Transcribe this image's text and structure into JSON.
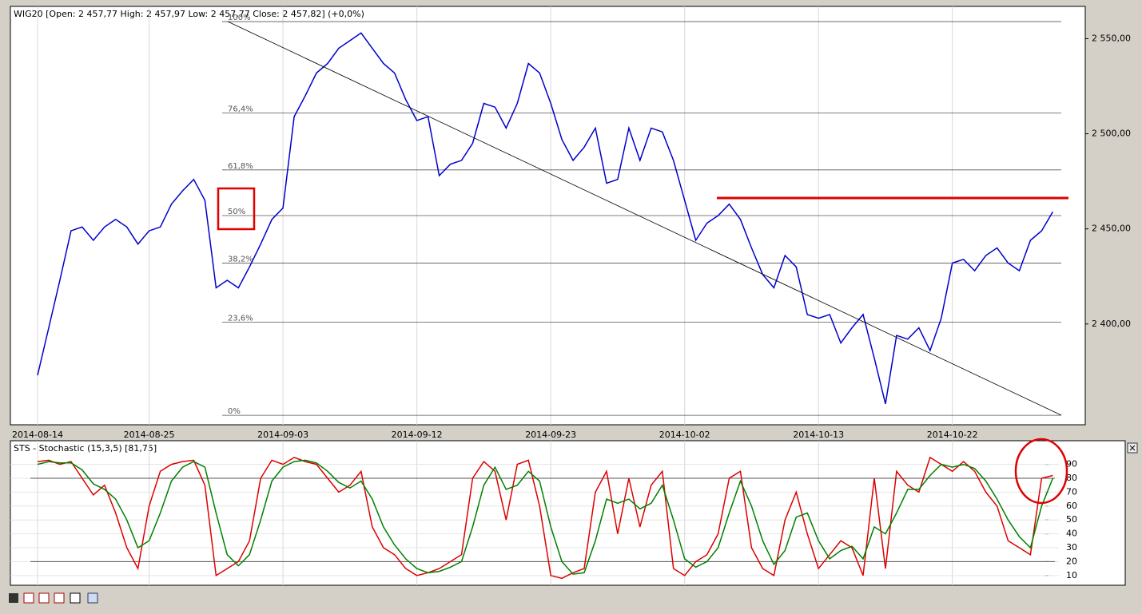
{
  "chart_data": [
    {
      "type": "line",
      "title": "WIG20 [Open: 2 457,77  High: 2 457,97  Low: 2 457,77  Close: 2 457,82] (+0,0%)",
      "color": "#0000cc",
      "categories": [
        "2014-08-14",
        null,
        null,
        null,
        null,
        null,
        null,
        null,
        null,
        null,
        "2014-08-25",
        null,
        null,
        null,
        null,
        null,
        null,
        null,
        null,
        null,
        null,
        null,
        "2014-09-03",
        null,
        null,
        null,
        null,
        null,
        null,
        null,
        null,
        null,
        null,
        null,
        "2014-09-12",
        null,
        null,
        null,
        null,
        null,
        null,
        null,
        null,
        null,
        null,
        null,
        "2014-09-23",
        null,
        null,
        null,
        null,
        null,
        null,
        null,
        null,
        null,
        null,
        null,
        "2014-10-02",
        null,
        null,
        null,
        null,
        null,
        null,
        null,
        null,
        null,
        null,
        null,
        "2014-10-13",
        null,
        null,
        null,
        null,
        null,
        null,
        null,
        null,
        null,
        null,
        null,
        "2014-10-22",
        null,
        null,
        null,
        null,
        null,
        null,
        null,
        null,
        null
      ],
      "values": [
        2373,
        2398,
        2423,
        2449,
        2451,
        2444,
        2451,
        2455,
        2451,
        2442,
        2449,
        2451,
        2463,
        2470,
        2476,
        2465,
        2419,
        2423,
        2419,
        2430,
        2442,
        2455,
        2461,
        2509,
        2520,
        2532,
        2537,
        2545,
        2549,
        2553,
        2545,
        2537,
        2532,
        2518,
        2507,
        2509,
        2478,
        2484,
        2486,
        2495,
        2516,
        2514,
        2503,
        2516,
        2537,
        2532,
        2516,
        2497,
        2486,
        2493,
        2503,
        2474,
        2476,
        2503,
        2486,
        2503,
        2501,
        2486,
        2465,
        2444,
        2453,
        2457,
        2463,
        2455,
        2440,
        2426,
        2419,
        2436,
        2430,
        2405,
        2403,
        2405,
        2390,
        2398,
        2405,
        2382,
        2358,
        2394,
        2392,
        2398,
        2386,
        2403,
        2432,
        2434,
        2428,
        2436,
        2440,
        2432,
        2428,
        2444,
        2449,
        2459
      ],
      "ylim": [
        2347,
        2567
      ],
      "yticks": [
        {
          "value": 2400,
          "label": "2 400,00"
        },
        {
          "value": 2450,
          "label": "2 450,00"
        },
        {
          "value": 2500,
          "label": "2 500,00"
        },
        {
          "value": 2550,
          "label": "2 550,00"
        }
      ],
      "xgrid": true,
      "fib_levels": [
        {
          "label": "100%",
          "value": 2559
        },
        {
          "label": "76,4%",
          "value": 2511
        },
        {
          "label": "61,8%",
          "value": 2481
        },
        {
          "label": "50%",
          "value": 2457
        },
        {
          "label": "38,2%",
          "value": 2432
        },
        {
          "label": "23,6%",
          "value": 2401
        },
        {
          "label": "0%",
          "value": 2352
        }
      ]
    },
    {
      "type": "line",
      "title": "STS - Stochastic (15,3,5) [81,75]",
      "series": [
        {
          "color": "#dd0000",
          "values": [
            92,
            93,
            90,
            92,
            80,
            68,
            75,
            55,
            30,
            15,
            60,
            85,
            90,
            92,
            93,
            75,
            10,
            15,
            20,
            35,
            80,
            93,
            90,
            95,
            92,
            90,
            80,
            70,
            75,
            85,
            45,
            30,
            25,
            15,
            10,
            12,
            15,
            20,
            25,
            80,
            92,
            85,
            50,
            90,
            93,
            60,
            10,
            8,
            12,
            15,
            70,
            85,
            40,
            80,
            45,
            75,
            85,
            15,
            10,
            20,
            25,
            40,
            80,
            85,
            30,
            15,
            10,
            50,
            70,
            40,
            15,
            25,
            35,
            30,
            10,
            80,
            15,
            85,
            75,
            70,
            95,
            90,
            85,
            92,
            85,
            70,
            60,
            35,
            30,
            25,
            80,
            82
          ]
        },
        {
          "color": "#008000",
          "values": [
            90,
            92,
            91,
            91,
            86,
            76,
            72,
            65,
            50,
            30,
            35,
            55,
            78,
            88,
            92,
            88,
            55,
            25,
            17,
            25,
            50,
            78,
            88,
            92,
            93,
            91,
            85,
            77,
            73,
            78,
            65,
            45,
            32,
            22,
            15,
            12,
            13,
            16,
            20,
            45,
            75,
            88,
            72,
            75,
            85,
            78,
            45,
            20,
            11,
            12,
            35,
            65,
            62,
            65,
            58,
            62,
            75,
            50,
            22,
            16,
            20,
            30,
            55,
            78,
            60,
            35,
            18,
            28,
            52,
            55,
            35,
            22,
            28,
            31,
            22,
            45,
            40,
            55,
            72,
            72,
            82,
            90,
            88,
            90,
            87,
            78,
            65,
            50,
            38,
            30,
            60,
            80
          ]
        }
      ],
      "ylim": [
        3,
        107
      ],
      "yticks": [
        10,
        20,
        30,
        40,
        50,
        60,
        70,
        80,
        90
      ],
      "grid": true,
      "reference_lines": [
        20,
        80
      ]
    }
  ]
}
